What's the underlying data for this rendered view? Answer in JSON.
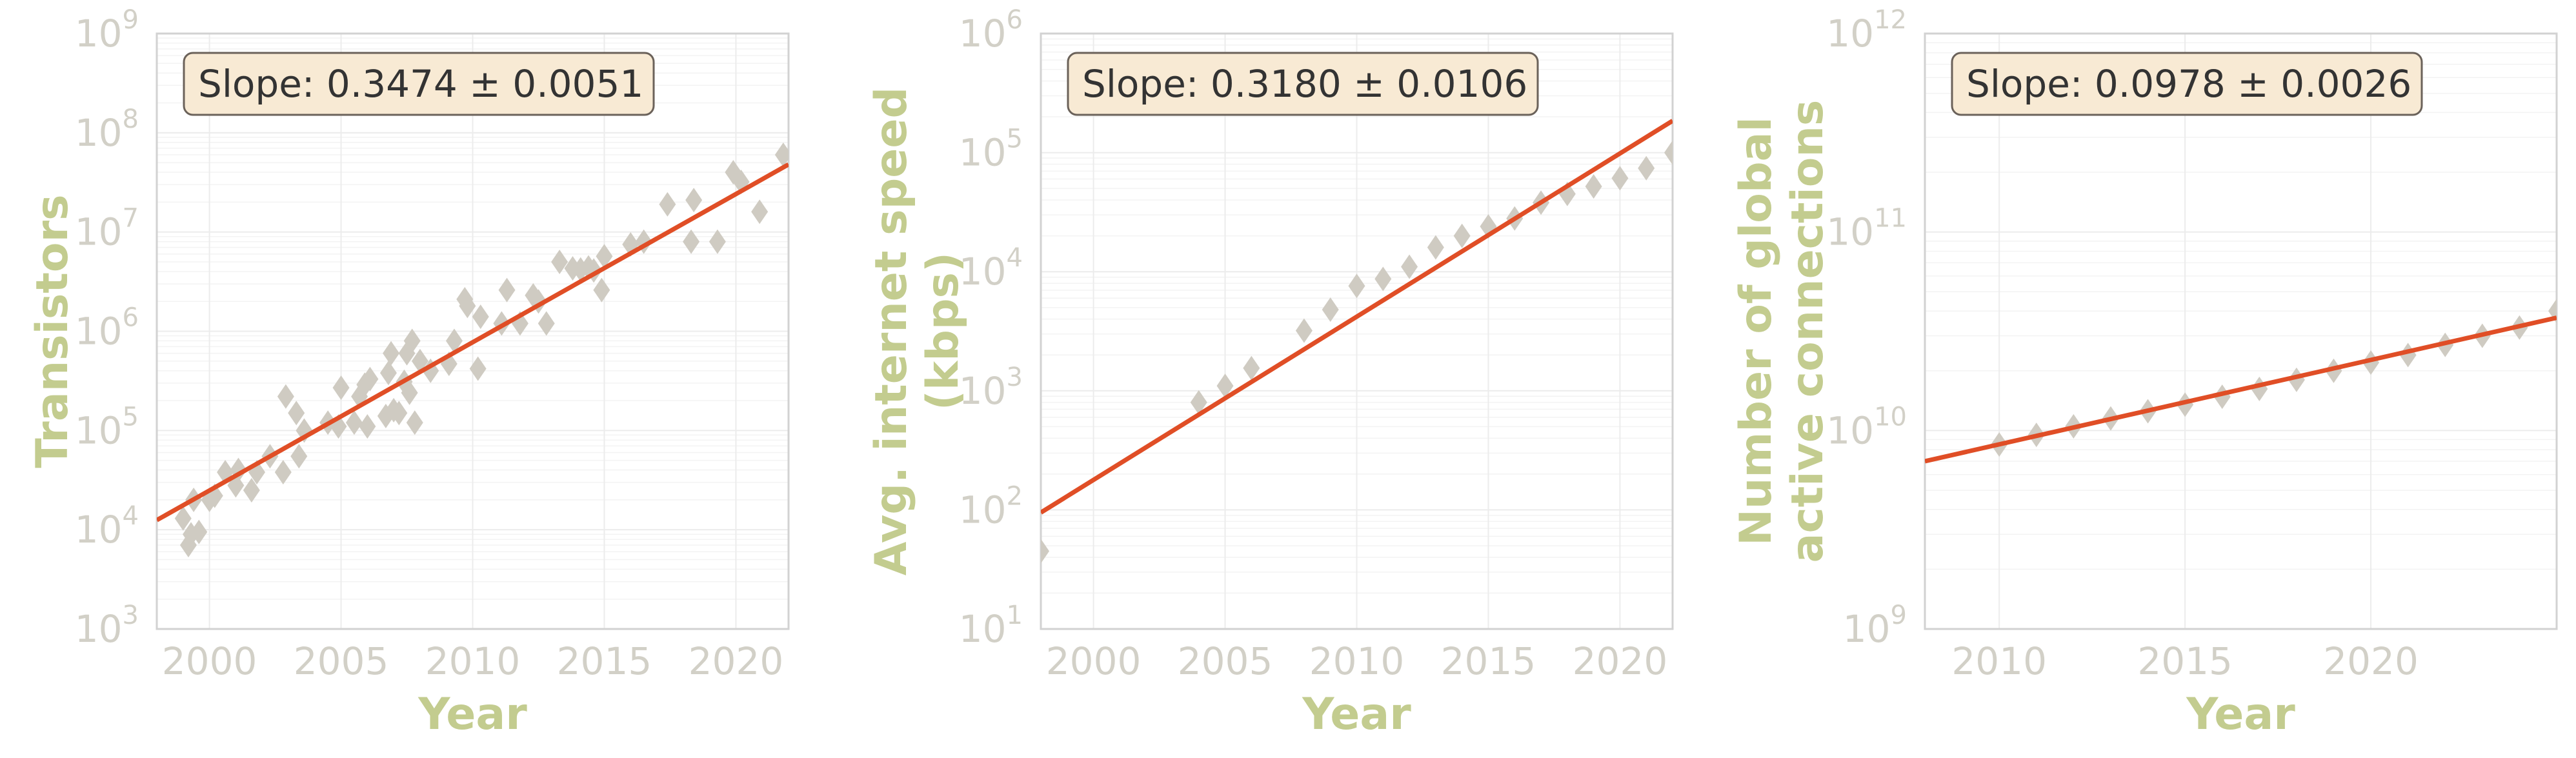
{
  "colors": {
    "fit_line": "#e04e26",
    "markers": "#cfcbc2",
    "tick_text": "#d2d0c7",
    "axis_label": "#c3cc8f",
    "slope_box_fill": "#f8ead4",
    "slope_box_edge": "#6b625a"
  },
  "chart_data": [
    {
      "type": "scatter",
      "name": "transistors",
      "xlabel": "Year",
      "ylabel": "Transistors",
      "ylabel_lines": [
        "Transistors"
      ],
      "slope_text": "Slope: 0.3474 ± 0.0051",
      "xlim": [
        1998,
        2022
      ],
      "yscale": "log",
      "ylim": [
        1000,
        1000000000
      ],
      "xticks": [
        2000,
        2005,
        2010,
        2015,
        2020
      ],
      "yticks": [
        {
          "value": 1000,
          "base": "10",
          "exp": "3"
        },
        {
          "value": 10000,
          "base": "10",
          "exp": "4"
        },
        {
          "value": 100000,
          "base": "10",
          "exp": "5"
        },
        {
          "value": 1000000,
          "base": "10",
          "exp": "6"
        },
        {
          "value": 10000000,
          "base": "10",
          "exp": "7"
        },
        {
          "value": 100000000,
          "base": "10",
          "exp": "8"
        },
        {
          "value": 1000000000,
          "base": "10",
          "exp": "9"
        }
      ],
      "grid": true,
      "fit": {
        "x": [
          1998,
          2022
        ],
        "y": [
          12500,
          48000000
        ]
      },
      "points": [
        [
          1999.0,
          13000
        ],
        [
          1999.2,
          7000
        ],
        [
          1999.3,
          9000
        ],
        [
          1999.4,
          20000
        ],
        [
          1999.6,
          9500
        ],
        [
          2000.0,
          20000
        ],
        [
          2000.2,
          22000
        ],
        [
          2000.6,
          38000
        ],
        [
          2001.0,
          28000
        ],
        [
          2001.1,
          40000
        ],
        [
          2001.6,
          25000
        ],
        [
          2001.8,
          38000
        ],
        [
          2002.3,
          55000
        ],
        [
          2002.8,
          38000
        ],
        [
          2002.9,
          220000
        ],
        [
          2003.3,
          150000
        ],
        [
          2003.4,
          55000
        ],
        [
          2003.6,
          100000
        ],
        [
          2004.5,
          120000
        ],
        [
          2004.9,
          110000
        ],
        [
          2005.0,
          270000
        ],
        [
          2005.5,
          120000
        ],
        [
          2005.7,
          220000
        ],
        [
          2005.9,
          290000
        ],
        [
          2006.0,
          110000
        ],
        [
          2006.1,
          330000
        ],
        [
          2006.7,
          140000
        ],
        [
          2006.8,
          380000
        ],
        [
          2006.9,
          600000
        ],
        [
          2007.0,
          160000
        ],
        [
          2007.2,
          150000
        ],
        [
          2007.4,
          310000
        ],
        [
          2007.5,
          600000
        ],
        [
          2007.6,
          240000
        ],
        [
          2007.7,
          800000
        ],
        [
          2007.8,
          120000
        ],
        [
          2008.0,
          500000
        ],
        [
          2008.4,
          400000
        ],
        [
          2009.1,
          470000
        ],
        [
          2009.3,
          800000
        ],
        [
          2009.7,
          2100000
        ],
        [
          2009.8,
          1800000
        ],
        [
          2010.2,
          420000
        ],
        [
          2010.3,
          1400000
        ],
        [
          2011.1,
          1200000
        ],
        [
          2011.3,
          2600000
        ],
        [
          2011.8,
          1200000
        ],
        [
          2012.3,
          2300000
        ],
        [
          2012.5,
          2000000
        ],
        [
          2012.8,
          1200000
        ],
        [
          2013.3,
          5000000
        ],
        [
          2013.8,
          4300000
        ],
        [
          2014.1,
          4200000
        ],
        [
          2014.4,
          4400000
        ],
        [
          2014.6,
          4100000
        ],
        [
          2014.9,
          2600000
        ],
        [
          2015.0,
          5700000
        ],
        [
          2016.0,
          7500000
        ],
        [
          2016.5,
          8000000
        ],
        [
          2017.4,
          19000000
        ],
        [
          2018.3,
          8000000
        ],
        [
          2018.4,
          21000000
        ],
        [
          2019.3,
          8000000
        ],
        [
          2019.9,
          40000000
        ],
        [
          2020.2,
          32000000
        ],
        [
          2020.9,
          16000000
        ],
        [
          2021.8,
          60000000
        ]
      ]
    },
    {
      "type": "scatter",
      "name": "internet_speed",
      "xlabel": "Year",
      "ylabel": "Avg. internet speed (kbps)",
      "ylabel_lines": [
        "Avg. internet speed",
        "(kbps)"
      ],
      "slope_text": "Slope: 0.3180 ± 0.0106",
      "xlim": [
        1998,
        2022
      ],
      "yscale": "log",
      "ylim": [
        10,
        1000000
      ],
      "xticks": [
        2000,
        2005,
        2010,
        2015,
        2020
      ],
      "yticks": [
        {
          "value": 10,
          "base": "10",
          "exp": "1"
        },
        {
          "value": 100,
          "base": "10",
          "exp": "2"
        },
        {
          "value": 1000,
          "base": "10",
          "exp": "3"
        },
        {
          "value": 10000,
          "base": "10",
          "exp": "4"
        },
        {
          "value": 100000,
          "base": "10",
          "exp": "5"
        },
        {
          "value": 1000000,
          "base": "10",
          "exp": "6"
        }
      ],
      "grid": true,
      "fit": {
        "x": [
          1998,
          2022
        ],
        "y": [
          95,
          185000
        ]
      },
      "points": [
        [
          1998.0,
          45
        ],
        [
          2004.0,
          800
        ],
        [
          2005.0,
          1100
        ],
        [
          2006.0,
          1550
        ],
        [
          2008.0,
          3200
        ],
        [
          2009.0,
          4800
        ],
        [
          2010.0,
          7600
        ],
        [
          2011.0,
          8700
        ],
        [
          2012.0,
          11000
        ],
        [
          2013.0,
          16000
        ],
        [
          2014.0,
          20000
        ],
        [
          2015.0,
          24000
        ],
        [
          2016.0,
          28000
        ],
        [
          2017.0,
          38000
        ],
        [
          2018.0,
          45000
        ],
        [
          2019.0,
          52000
        ],
        [
          2020.0,
          61000
        ],
        [
          2021.0,
          74000
        ],
        [
          2022.0,
          100000
        ]
      ]
    },
    {
      "type": "scatter",
      "name": "active_connections",
      "xlabel": "Year",
      "ylabel": "Number of global active connections",
      "ylabel_lines": [
        "Number of global",
        "active connections"
      ],
      "slope_text": "Slope: 0.0978 ± 0.0026",
      "xlim": [
        2008,
        2025
      ],
      "yscale": "log",
      "ylim": [
        1000000000,
        1000000000000
      ],
      "xticks": [
        2010,
        2015,
        2020
      ],
      "yticks": [
        {
          "value": 1000000000,
          "base": "10",
          "exp": "9"
        },
        {
          "value": 10000000000,
          "base": "10",
          "exp": "10"
        },
        {
          "value": 100000000000,
          "base": "10",
          "exp": "11"
        },
        {
          "value": 1000000000000,
          "base": "10",
          "exp": "12"
        }
      ],
      "grid": true,
      "fit": {
        "x": [
          2008,
          2025
        ],
        "y": [
          7000000000,
          37000000000
        ]
      },
      "points": [
        [
          2010,
          8500000000
        ],
        [
          2011,
          9500000000
        ],
        [
          2012,
          10500000000
        ],
        [
          2013,
          11500000000
        ],
        [
          2014,
          12500000000
        ],
        [
          2015,
          13500000000
        ],
        [
          2016,
          14800000000
        ],
        [
          2017,
          16200000000
        ],
        [
          2018,
          18000000000
        ],
        [
          2019,
          20000000000
        ],
        [
          2020,
          22000000000
        ],
        [
          2021,
          24000000000
        ],
        [
          2022,
          27000000000
        ],
        [
          2023,
          30000000000
        ],
        [
          2024,
          33000000000
        ],
        [
          2025,
          40000000000
        ]
      ]
    }
  ]
}
